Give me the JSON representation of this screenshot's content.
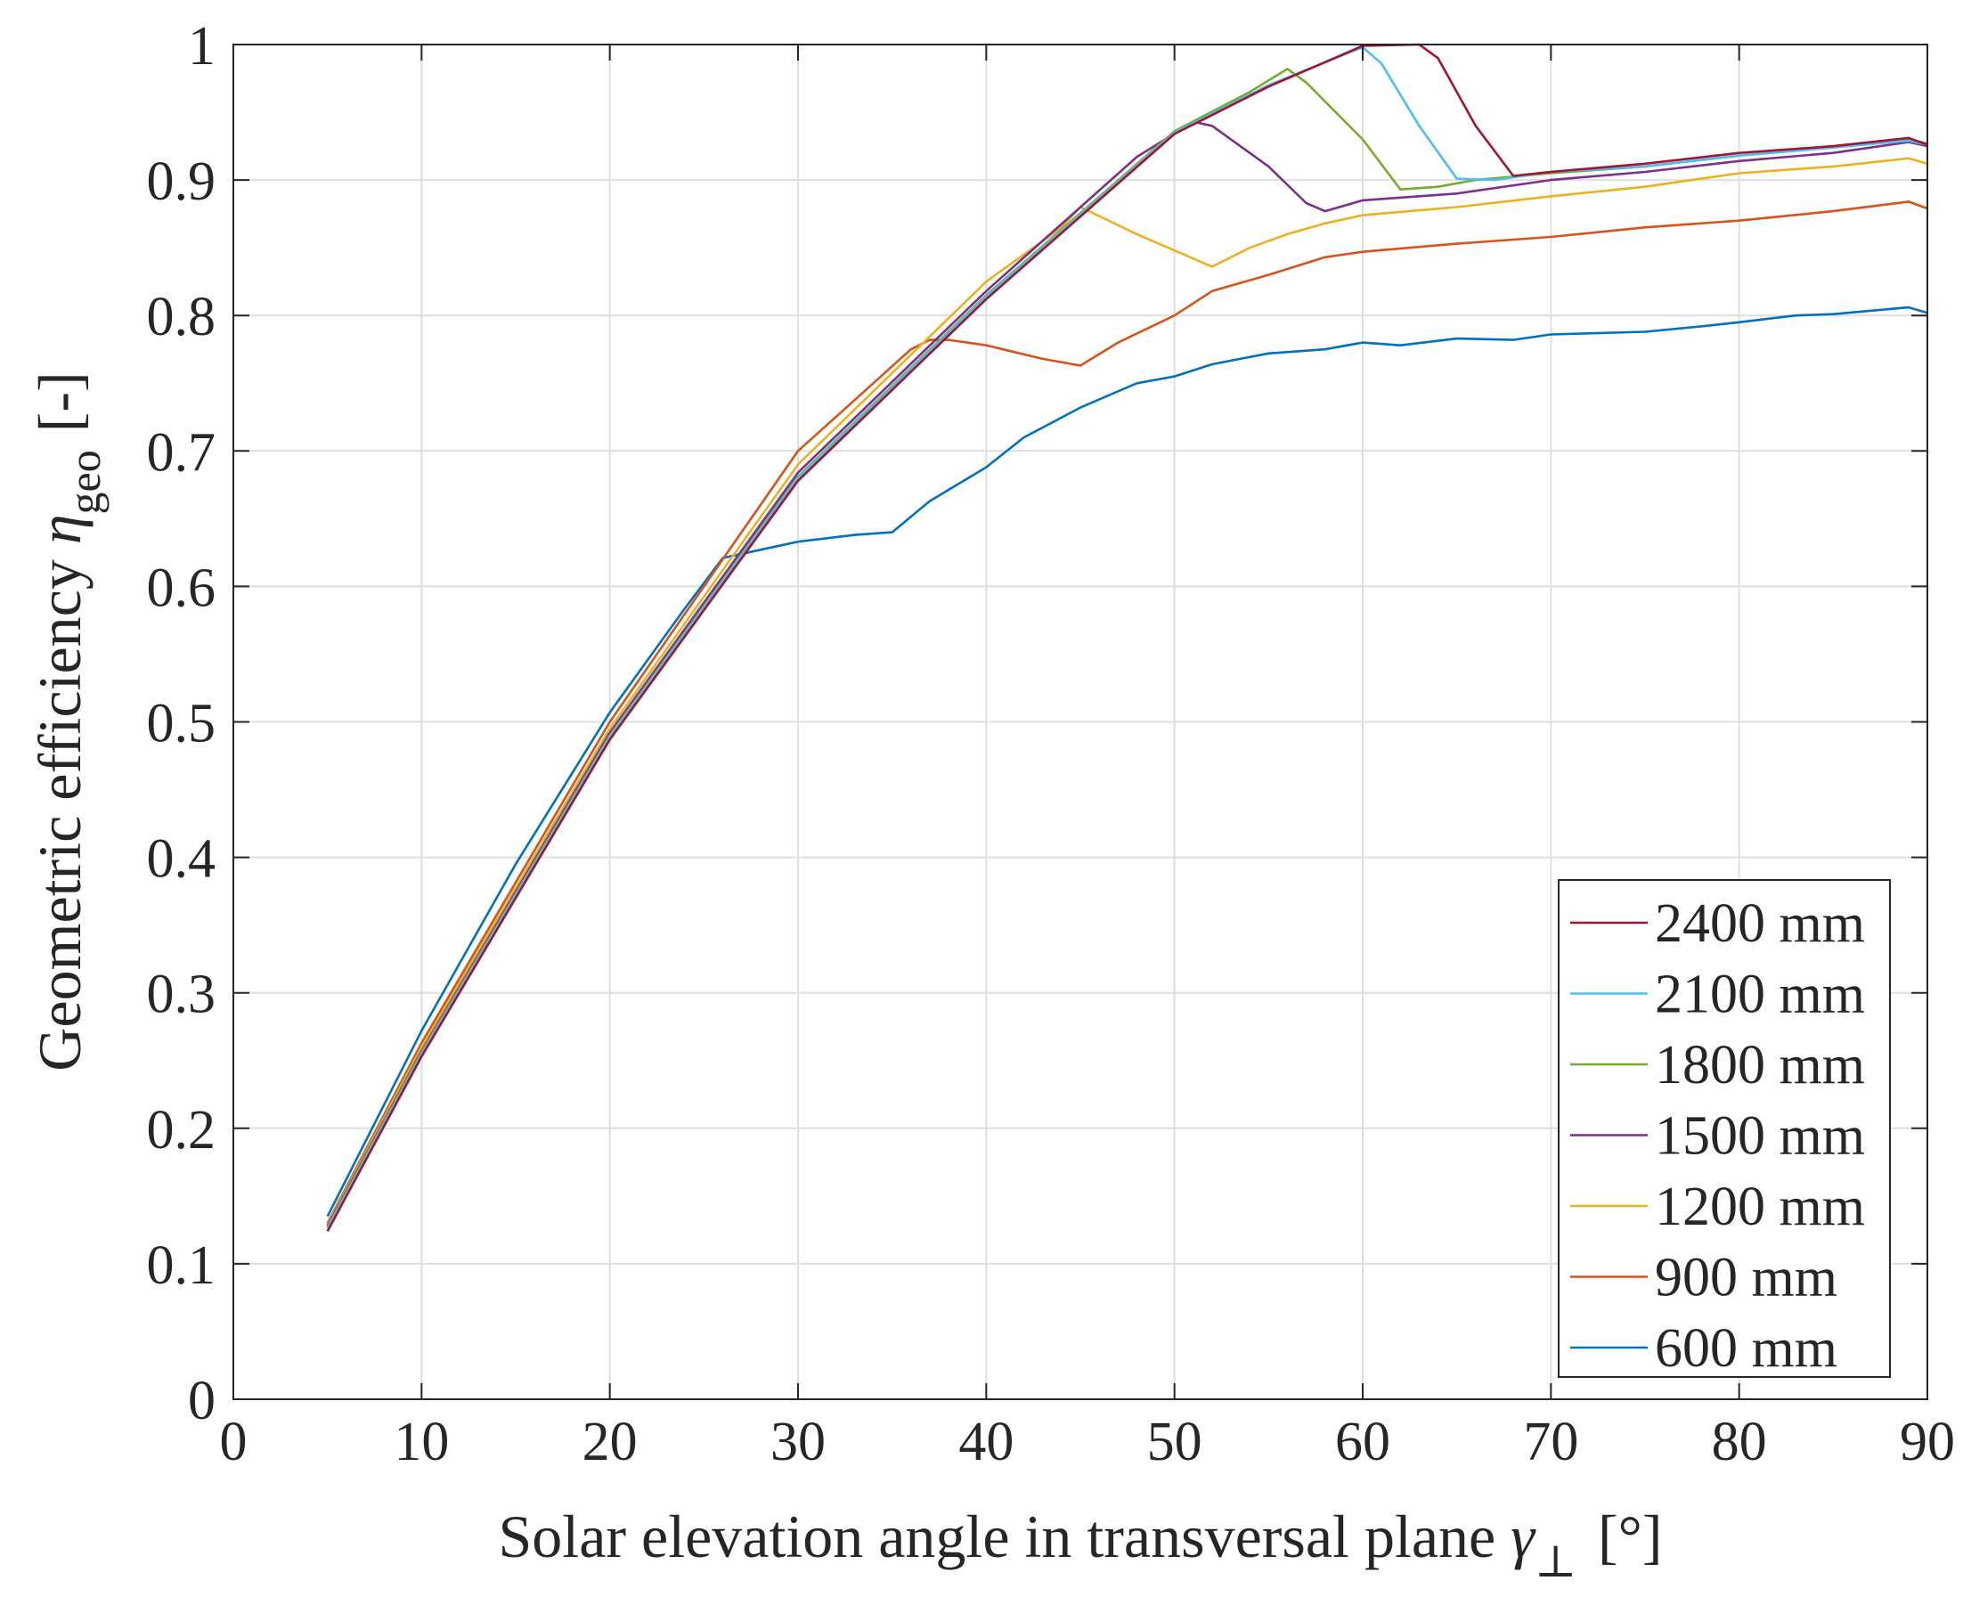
{
  "chart_data": {
    "type": "line",
    "title": "",
    "xlabel": {
      "text": "Solar elevation angle in transversal plane",
      "symbol": "γ",
      "subscript": "⊥",
      "unit": "[°]"
    },
    "ylabel": {
      "text": "Geometric efficiency",
      "symbol": "η",
      "subscript": "geo",
      "unit": "[-]"
    },
    "xlim": [
      0,
      90
    ],
    "ylim": [
      0,
      1
    ],
    "xticks": [
      0,
      10,
      20,
      30,
      40,
      50,
      60,
      70,
      80,
      90
    ],
    "yticks": [
      0,
      0.1,
      0.2,
      0.3,
      0.4,
      0.5,
      0.6,
      0.7,
      0.8,
      0.9,
      1
    ],
    "xtick_labels": [
      "0",
      "10",
      "20",
      "30",
      "40",
      "50",
      "60",
      "70",
      "80",
      "90"
    ],
    "ytick_labels": [
      "0",
      "0.1",
      "0.2",
      "0.3",
      "0.4",
      "0.5",
      "0.6",
      "0.7",
      "0.8",
      "0.9",
      "1"
    ],
    "grid": true,
    "legend_position": "bottom-right",
    "series": [
      {
        "name": "2400 mm",
        "color": "#a2142f",
        "points": [
          [
            5,
            0.124
          ],
          [
            10,
            0.253
          ],
          [
            20,
            0.487
          ],
          [
            30,
            0.678
          ],
          [
            40,
            0.812
          ],
          [
            50,
            0.934
          ],
          [
            55,
            0.969
          ],
          [
            60,
            0.999
          ],
          [
            63,
            1.0
          ],
          [
            64,
            0.99
          ],
          [
            66,
            0.94
          ],
          [
            68,
            0.903
          ],
          [
            70,
            0.906
          ],
          [
            75,
            0.912
          ],
          [
            80,
            0.92
          ],
          [
            85,
            0.925
          ],
          [
            89,
            0.931
          ],
          [
            90,
            0.926
          ]
        ]
      },
      {
        "name": "2100 mm",
        "color": "#4dbeee",
        "points": [
          [
            5,
            0.126
          ],
          [
            10,
            0.255
          ],
          [
            20,
            0.489
          ],
          [
            30,
            0.68
          ],
          [
            40,
            0.814
          ],
          [
            50,
            0.935
          ],
          [
            55,
            0.97
          ],
          [
            60,
            0.998
          ],
          [
            61,
            0.986
          ],
          [
            63,
            0.94
          ],
          [
            65,
            0.901
          ],
          [
            67,
            0.9
          ],
          [
            70,
            0.906
          ],
          [
            75,
            0.91
          ],
          [
            80,
            0.918
          ],
          [
            85,
            0.924
          ],
          [
            89,
            0.929
          ],
          [
            90,
            0.926
          ]
        ]
      },
      {
        "name": "1800 mm",
        "color": "#77ac30",
        "points": [
          [
            5,
            0.127
          ],
          [
            10,
            0.256
          ],
          [
            20,
            0.49
          ],
          [
            30,
            0.681
          ],
          [
            40,
            0.815
          ],
          [
            50,
            0.936
          ],
          [
            54,
            0.965
          ],
          [
            56,
            0.982
          ],
          [
            57,
            0.972
          ],
          [
            60,
            0.93
          ],
          [
            62,
            0.893
          ],
          [
            64,
            0.895
          ],
          [
            66,
            0.9
          ],
          [
            70,
            0.905
          ],
          [
            75,
            0.91
          ],
          [
            80,
            0.918
          ],
          [
            85,
            0.924
          ],
          [
            89,
            0.93
          ],
          [
            90,
            0.927
          ]
        ]
      },
      {
        "name": "1500 mm",
        "color": "#7e2f8e",
        "points": [
          [
            5,
            0.128
          ],
          [
            10,
            0.257
          ],
          [
            20,
            0.492
          ],
          [
            30,
            0.684
          ],
          [
            40,
            0.818
          ],
          [
            48,
            0.917
          ],
          [
            51,
            0.943
          ],
          [
            52,
            0.94
          ],
          [
            55,
            0.91
          ],
          [
            57,
            0.883
          ],
          [
            58,
            0.877
          ],
          [
            60,
            0.885
          ],
          [
            65,
            0.89
          ],
          [
            70,
            0.9
          ],
          [
            75,
            0.906
          ],
          [
            80,
            0.914
          ],
          [
            85,
            0.92
          ],
          [
            89,
            0.928
          ],
          [
            90,
            0.925
          ]
        ]
      },
      {
        "name": "1200 mm",
        "color": "#edb120",
        "points": [
          [
            5,
            0.129
          ],
          [
            10,
            0.26
          ],
          [
            20,
            0.495
          ],
          [
            30,
            0.69
          ],
          [
            40,
            0.825
          ],
          [
            44,
            0.865
          ],
          [
            45,
            0.88
          ],
          [
            48,
            0.86
          ],
          [
            52,
            0.836
          ],
          [
            54,
            0.85
          ],
          [
            56,
            0.86
          ],
          [
            58,
            0.868
          ],
          [
            60,
            0.874
          ],
          [
            65,
            0.88
          ],
          [
            70,
            0.888
          ],
          [
            75,
            0.895
          ],
          [
            80,
            0.905
          ],
          [
            85,
            0.91
          ],
          [
            89,
            0.916
          ],
          [
            90,
            0.912
          ]
        ]
      },
      {
        "name": "900 mm",
        "color": "#d95319",
        "points": [
          [
            5,
            0.13
          ],
          [
            10,
            0.263
          ],
          [
            20,
            0.5
          ],
          [
            30,
            0.7
          ],
          [
            34,
            0.75
          ],
          [
            36,
            0.775
          ],
          [
            37,
            0.782
          ],
          [
            38,
            0.782
          ],
          [
            40,
            0.778
          ],
          [
            43,
            0.768
          ],
          [
            45,
            0.763
          ],
          [
            47,
            0.78
          ],
          [
            50,
            0.8
          ],
          [
            52,
            0.818
          ],
          [
            55,
            0.83
          ],
          [
            58,
            0.843
          ],
          [
            60,
            0.847
          ],
          [
            65,
            0.853
          ],
          [
            70,
            0.858
          ],
          [
            75,
            0.865
          ],
          [
            80,
            0.87
          ],
          [
            85,
            0.877
          ],
          [
            89,
            0.884
          ],
          [
            90,
            0.879
          ]
        ]
      },
      {
        "name": "600 mm",
        "color": "#0072bd",
        "points": [
          [
            5,
            0.135
          ],
          [
            10,
            0.272
          ],
          [
            15,
            0.395
          ],
          [
            20,
            0.507
          ],
          [
            24,
            0.584
          ],
          [
            26,
            0.621
          ],
          [
            28,
            0.627
          ],
          [
            30,
            0.633
          ],
          [
            33,
            0.638
          ],
          [
            35,
            0.64
          ],
          [
            37,
            0.663
          ],
          [
            40,
            0.688
          ],
          [
            42,
            0.71
          ],
          [
            45,
            0.732
          ],
          [
            48,
            0.75
          ],
          [
            50,
            0.755
          ],
          [
            52,
            0.764
          ],
          [
            55,
            0.772
          ],
          [
            58,
            0.775
          ],
          [
            60,
            0.78
          ],
          [
            62,
            0.778
          ],
          [
            65,
            0.783
          ],
          [
            68,
            0.782
          ],
          [
            70,
            0.786
          ],
          [
            75,
            0.788
          ],
          [
            78,
            0.792
          ],
          [
            80,
            0.795
          ],
          [
            83,
            0.8
          ],
          [
            85,
            0.801
          ],
          [
            89,
            0.806
          ],
          [
            90,
            0.802
          ]
        ]
      }
    ]
  }
}
